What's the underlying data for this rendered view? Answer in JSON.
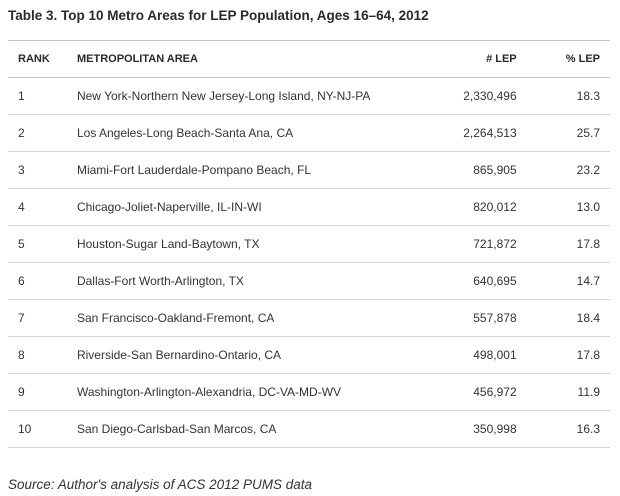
{
  "title": "Table 3. Top 10 Metro Areas for LEP Population, Ages 16–64, 2012",
  "columns": {
    "rank": "RANK",
    "area": "METROPOLITAN AREA",
    "num_lep": "# LEP",
    "pct_lep": "% LEP"
  },
  "rows": [
    {
      "rank": "1",
      "area": "New York-Northern New Jersey-Long Island, NY-NJ-PA",
      "num_lep": "2,330,496",
      "pct_lep": "18.3"
    },
    {
      "rank": "2",
      "area": "Los Angeles-Long Beach-Santa Ana, CA",
      "num_lep": "2,264,513",
      "pct_lep": "25.7"
    },
    {
      "rank": "3",
      "area": "Miami-Fort Lauderdale-Pompano Beach, FL",
      "num_lep": "865,905",
      "pct_lep": "23.2"
    },
    {
      "rank": "4",
      "area": "Chicago-Joliet-Naperville, IL-IN-WI",
      "num_lep": "820,012",
      "pct_lep": "13.0"
    },
    {
      "rank": "5",
      "area": "Houston-Sugar Land-Baytown, TX",
      "num_lep": "721,872",
      "pct_lep": "17.8"
    },
    {
      "rank": "6",
      "area": "Dallas-Fort Worth-Arlington, TX",
      "num_lep": "640,695",
      "pct_lep": "14.7"
    },
    {
      "rank": "7",
      "area": "San Francisco-Oakland-Fremont, CA",
      "num_lep": "557,878",
      "pct_lep": "18.4"
    },
    {
      "rank": "8",
      "area": "Riverside-San Bernardino-Ontario, CA",
      "num_lep": "498,001",
      "pct_lep": "17.8"
    },
    {
      "rank": "9",
      "area": "Washington-Arlington-Alexandria, DC-VA-MD-WV",
      "num_lep": "456,972",
      "pct_lep": "11.9"
    },
    {
      "rank": "10",
      "area": "San Diego-Carlsbad-San Marcos, CA",
      "num_lep": "350,998",
      "pct_lep": "16.3"
    }
  ],
  "source": "Source: Author's analysis of ACS 2012 PUMS data"
}
